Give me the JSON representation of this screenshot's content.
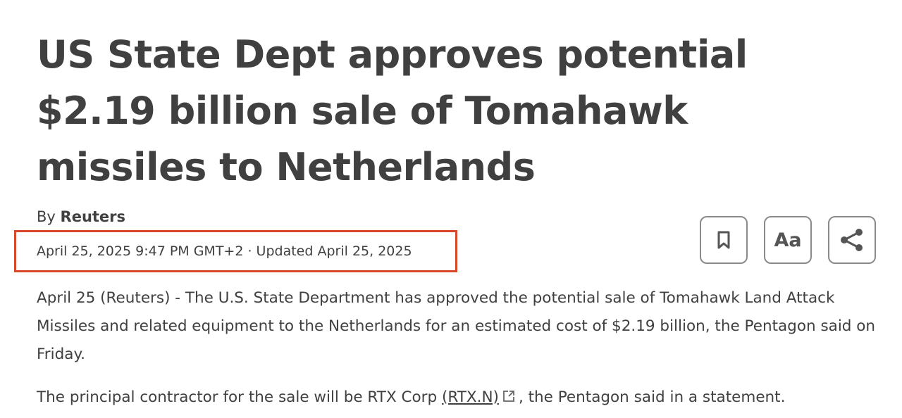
{
  "article": {
    "headline": "US State Dept approves potential $2.19 billion sale of Tomahawk missiles to Netherlands",
    "byline_prefix": "By",
    "author": "Reuters",
    "dateline": "April 25, 2025 9:47 PM GMT+2 · Updated April 25, 2025",
    "paragraph1": "April 25 (Reuters) - The U.S. State Department has approved the potential sale of Tomahawk Land Attack Missiles and related equipment to the Netherlands for an estimated cost of $2.19 billion, the Pentagon said on Friday.",
    "paragraph2_before": "The principal contractor for the sale will be RTX Corp",
    "paragraph2_link": "(RTX.N)",
    "paragraph2_after": ", the Pentagon said in a statement."
  },
  "toolbar": {
    "bookmark_icon": "bookmark-icon",
    "font_size_label": "Aa",
    "share_icon": "share-icon"
  },
  "colors": {
    "highlight_box": "#d9472b",
    "text": "#404040"
  }
}
